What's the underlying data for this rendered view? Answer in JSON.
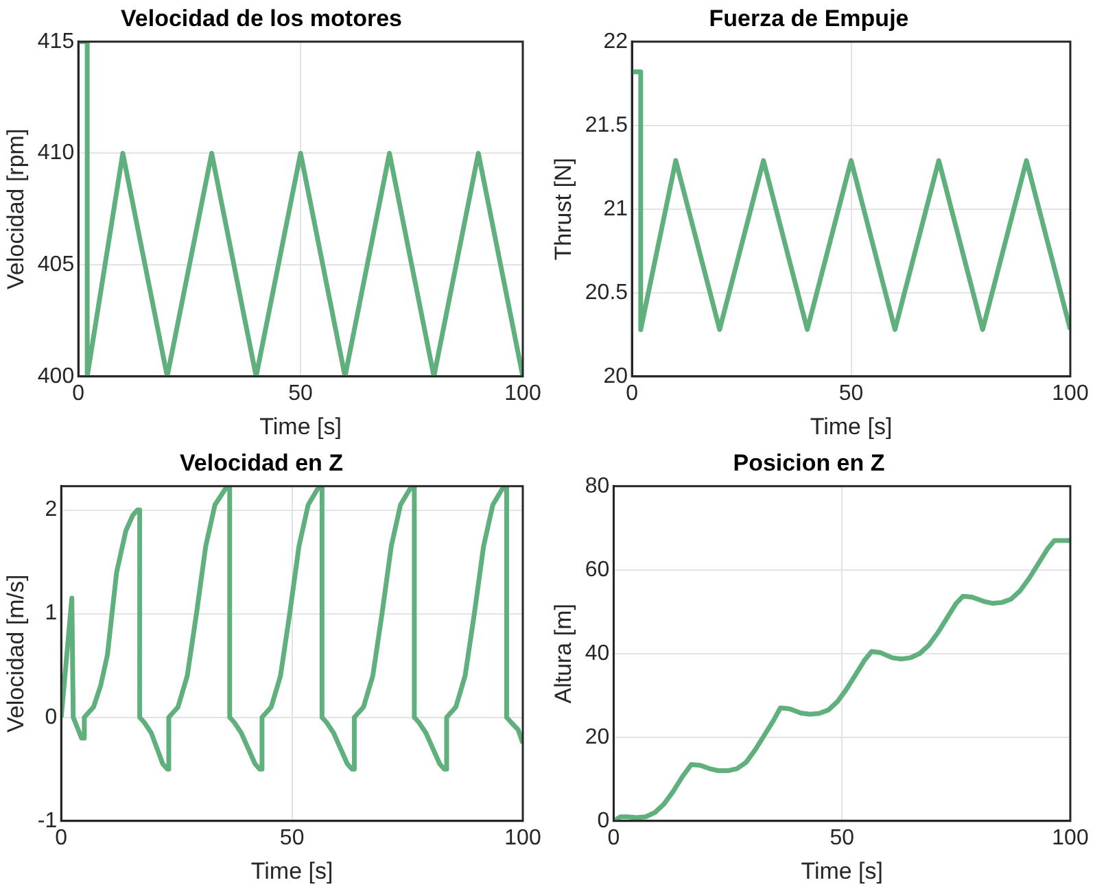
{
  "chart_data": [
    {
      "type": "line",
      "title": "Velocidad de los motores",
      "xlabel": "Time [s]",
      "ylabel": "Velocidad [rpm]",
      "color": "#5fb07c",
      "grid": true,
      "x": [
        0,
        2,
        2,
        10,
        20,
        30,
        40,
        50,
        60,
        70,
        80,
        90,
        100
      ],
      "values": [
        415,
        415,
        400,
        410,
        400,
        410,
        400,
        410,
        400,
        410,
        400,
        410,
        400
      ],
      "xlim": [
        0,
        100
      ],
      "xticks": [
        0,
        50,
        100
      ],
      "ylim": [
        400,
        415
      ],
      "yticks": [
        400,
        405,
        410,
        415
      ]
    },
    {
      "type": "line",
      "title": "Fuerza de Empuje",
      "xlabel": "Time [s]",
      "ylabel": "Thrust [N]",
      "color": "#5fb07c",
      "grid": true,
      "x": [
        0,
        2,
        2,
        10,
        20,
        30,
        40,
        50,
        60,
        70,
        80,
        90,
        100
      ],
      "values": [
        21.82,
        21.82,
        20.28,
        21.29,
        20.28,
        21.29,
        20.28,
        21.29,
        20.28,
        21.29,
        20.28,
        21.29,
        20.28
      ],
      "xlim": [
        0,
        100
      ],
      "xticks": [
        0,
        50,
        100
      ],
      "ylim": [
        20,
        22
      ],
      "yticks": [
        20,
        20.5,
        21,
        21.5,
        22
      ]
    },
    {
      "type": "line",
      "title": "Velocidad en Z",
      "xlabel": "Time [s]",
      "ylabel": "Velocidad [m/s]",
      "color": "#5fb07c",
      "grid": true,
      "x": [
        0,
        2.3,
        2.6,
        4.4,
        5,
        5,
        7,
        8.5,
        10,
        11,
        12,
        14,
        15.5,
        16.5,
        17,
        17,
        18,
        19.5,
        22,
        23,
        23.3,
        23.3,
        25.3,
        27.3,
        29.3,
        31.3,
        33.3,
        35.5,
        36,
        36.5,
        36.5,
        37.5,
        39,
        42,
        43,
        43.5,
        43.5,
        45.5,
        47.5,
        49.5,
        51.5,
        53.5,
        55.5,
        56,
        56.5,
        56.5,
        57.5,
        59,
        62,
        63,
        63.5,
        63.5,
        65.5,
        67.5,
        69.5,
        71.5,
        73.5,
        75.5,
        76,
        76.5,
        76.5,
        77.5,
        79,
        82,
        83,
        83.5,
        83.5,
        85.5,
        87.5,
        89.5,
        91.5,
        93.5,
        95.5,
        96,
        96.5,
        96.5,
        97.5,
        99,
        100
      ],
      "values": [
        0,
        1.15,
        0,
        -0.2,
        -0.2,
        0,
        0.1,
        0.3,
        0.6,
        1.0,
        1.4,
        1.8,
        1.95,
        2.0,
        2.0,
        0,
        -0.05,
        -0.15,
        -0.45,
        -0.5,
        -0.5,
        0,
        0.1,
        0.4,
        1.0,
        1.65,
        2.05,
        2.2,
        2.22,
        2.22,
        0,
        -0.05,
        -0.15,
        -0.45,
        -0.5,
        -0.5,
        0,
        0.1,
        0.4,
        1.0,
        1.65,
        2.05,
        2.2,
        2.22,
        2.22,
        0,
        -0.05,
        -0.15,
        -0.45,
        -0.5,
        -0.5,
        0,
        0.1,
        0.4,
        1.0,
        1.65,
        2.05,
        2.2,
        2.22,
        2.22,
        0,
        -0.05,
        -0.15,
        -0.45,
        -0.5,
        -0.5,
        0,
        0.1,
        0.4,
        1.0,
        1.65,
        2.05,
        2.2,
        2.22,
        2.22,
        0,
        -0.05,
        -0.12,
        -0.25
      ],
      "xlim": [
        0,
        100
      ],
      "xticks": [
        0,
        50,
        100
      ],
      "ylim": [
        -1,
        2.23
      ],
      "yticks": [
        -1,
        0,
        1,
        2
      ]
    },
    {
      "type": "line",
      "title": "Posicion en Z",
      "xlabel": "Time [s]",
      "ylabel": "Altura [m]",
      "color": "#5fb07c",
      "grid": true,
      "x": [
        0,
        1.5,
        3,
        5,
        7,
        9,
        11,
        13,
        15,
        17,
        19,
        21,
        23,
        25,
        27,
        29,
        31,
        33,
        35,
        36.5,
        38.5,
        41,
        43,
        45,
        47,
        49,
        51,
        53,
        55,
        56.5,
        58.5,
        61,
        63,
        65,
        67,
        69,
        71,
        73,
        75,
        76.5,
        78.5,
        81,
        83,
        85,
        87,
        89,
        91,
        93,
        95,
        96.5,
        100
      ],
      "values": [
        0,
        1,
        1,
        0.8,
        1,
        2,
        4,
        7,
        10.5,
        13.5,
        13.3,
        12.5,
        12,
        12,
        12.5,
        14,
        17,
        20.5,
        24,
        27,
        26.8,
        25.8,
        25.5,
        25.7,
        26.5,
        28.5,
        31.5,
        35,
        38.5,
        40.5,
        40.2,
        39,
        38.7,
        39,
        40,
        42,
        45,
        48.5,
        52,
        53.7,
        53.5,
        52.5,
        52,
        52.2,
        53,
        55,
        58,
        61.5,
        65,
        67,
        67
      ],
      "xlim": [
        0,
        100
      ],
      "xticks": [
        0,
        50,
        100
      ],
      "ylim": [
        0,
        80
      ],
      "yticks": [
        0,
        20,
        40,
        60,
        80
      ]
    }
  ]
}
